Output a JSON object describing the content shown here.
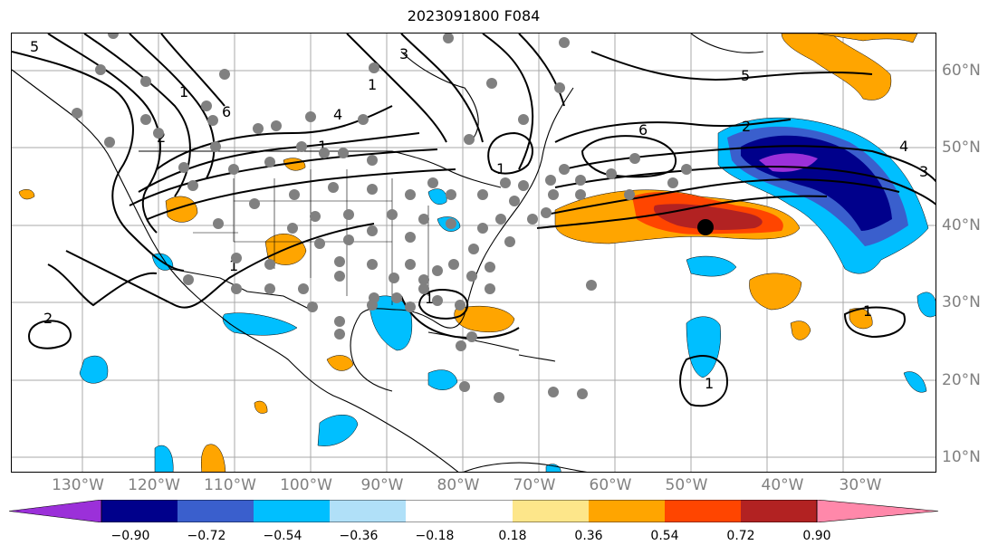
{
  "title": "2023091800 F084",
  "lon_labels": [
    "130°W",
    "120°W",
    "110°W",
    "100°W",
    "90°W",
    "80°W",
    "70°W",
    "60°W",
    "50°W",
    "40°W",
    "30°W"
  ],
  "lat_labels": [
    "60°N",
    "50°N",
    "40°N",
    "30°N",
    "20°N",
    "10°N"
  ],
  "colorbar": {
    "ticks": [
      "−0.90",
      "−0.72",
      "−0.54",
      "−0.36",
      "−0.18",
      "0.18",
      "0.36",
      "0.54",
      "0.72",
      "0.90"
    ],
    "colors": [
      "#9b30d9",
      "#00008b",
      "#3a5fcd",
      "#00bfff",
      "#b0e0f8",
      "#ffffff",
      "#fde68a",
      "#ffa500",
      "#ff4500",
      "#b22222",
      "#ff88aa"
    ]
  },
  "contour_labels": [
    "5",
    "1",
    "4",
    "6",
    "2",
    "1",
    "3",
    "1",
    "2",
    "1",
    "6",
    "1",
    "5",
    "4",
    "3",
    "1",
    "1",
    "1",
    "2"
  ]
}
